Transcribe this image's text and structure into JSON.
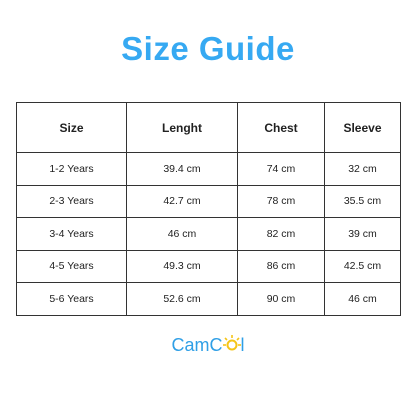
{
  "title": "Size Guide",
  "table": {
    "header": [
      "Size",
      "Lenght",
      "Chest",
      "Sleeve"
    ],
    "rows": [
      [
        "1-2 Years",
        "39.4 cm",
        "74 cm",
        "32 cm"
      ],
      [
        "2-3 Years",
        "42.7 cm",
        "78 cm",
        "35.5 cm"
      ],
      [
        "3-4 Years",
        "46 cm",
        "82 cm",
        "39 cm"
      ],
      [
        "4-5 Years",
        "49.3 cm",
        "86 cm",
        "42.5 cm"
      ],
      [
        "5-6 Years",
        "52.6 cm",
        "90 cm",
        "46 cm"
      ]
    ]
  },
  "logo": {
    "start": "CamC",
    "end": "l"
  }
}
